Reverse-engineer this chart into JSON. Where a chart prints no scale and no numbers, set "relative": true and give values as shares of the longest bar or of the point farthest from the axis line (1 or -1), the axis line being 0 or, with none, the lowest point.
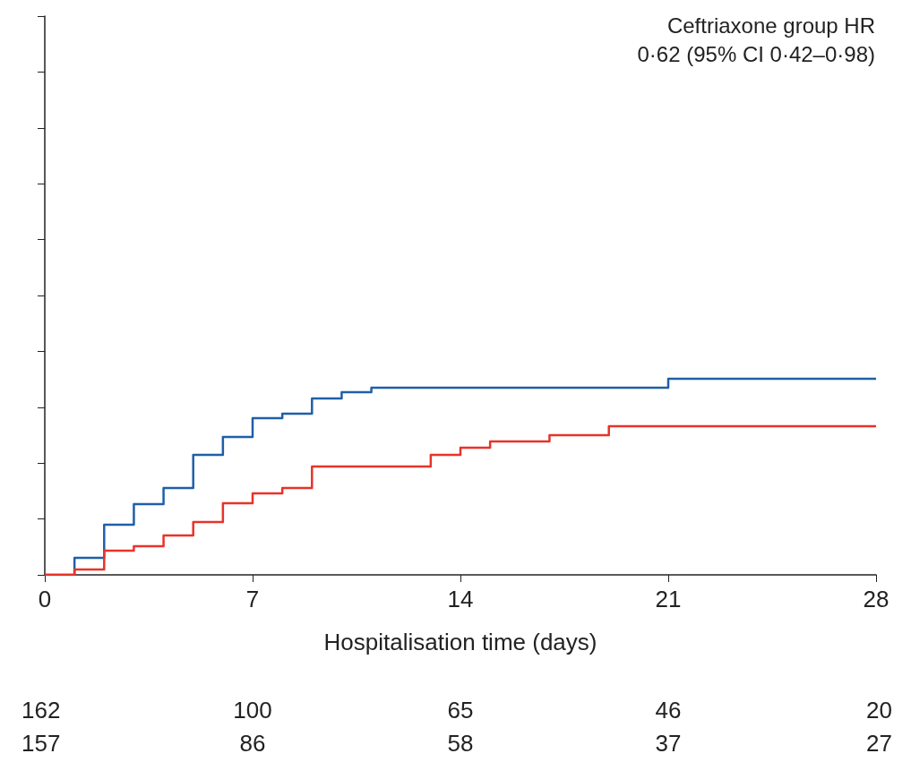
{
  "chart_data": {
    "type": "step",
    "relative": true,
    "xlabel": "Hospitalisation time (days)",
    "xlim": [
      0,
      28
    ],
    "xticks": [
      0,
      7,
      14,
      21,
      28
    ],
    "annotations": [
      "Ceftriaxone group HR",
      "0·62 (95% CI 0·42–0·98)",
      "162",
      "100",
      "65",
      "46",
      "20",
      "157",
      "86",
      "58",
      "37",
      "27"
    ],
    "series": [
      {
        "color": "#1f5fa8",
        "x": [
          0,
          1,
          2,
          3,
          4,
          5,
          6,
          7,
          8,
          9,
          10,
          11,
          21,
          28
        ],
        "values": [
          0,
          0.087,
          0.256,
          0.361,
          0.443,
          0.612,
          0.703,
          0.799,
          0.822,
          0.9,
          0.932,
          0.954,
          1,
          1
        ]
      },
      {
        "color": "#e8332a",
        "x": [
          0,
          1,
          2,
          3,
          4,
          5,
          6,
          7,
          8,
          9,
          13,
          14,
          15,
          17,
          19,
          28
        ],
        "values": [
          0,
          0.027,
          0.123,
          0.146,
          0.201,
          0.269,
          0.365,
          0.416,
          0.443,
          0.553,
          0.612,
          0.648,
          0.68,
          0.712,
          0.758,
          0.758
        ]
      }
    ]
  }
}
